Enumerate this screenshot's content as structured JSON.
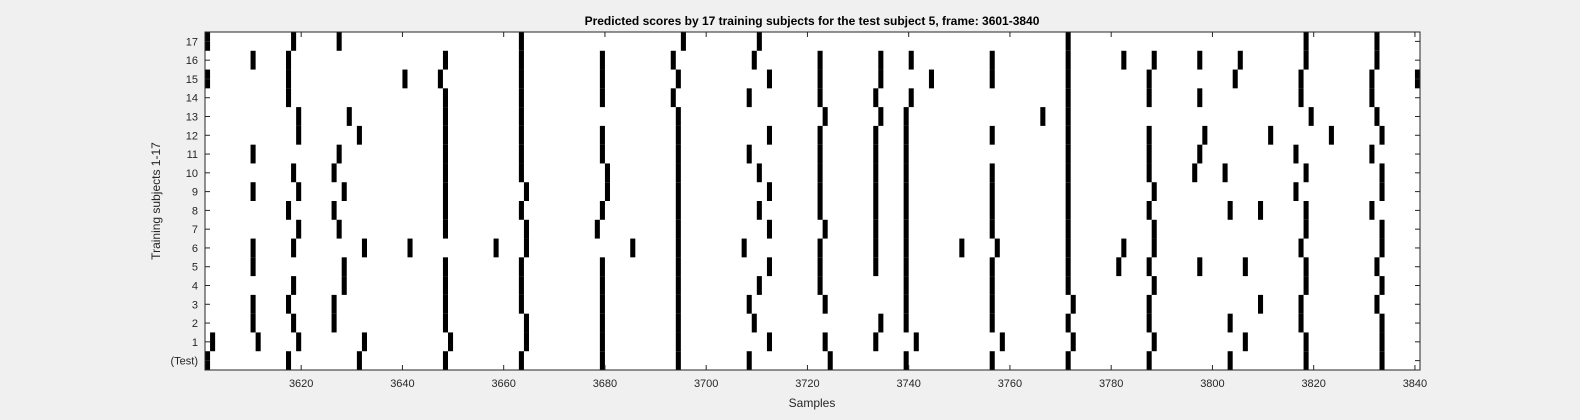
{
  "chart_data": {
    "type": "heatmap",
    "title": "Predicted scores by 17 training subjects for the test subject 5, frame: 3601-3840",
    "xlabel": "Samples",
    "ylabel": "Training subjects 1-17",
    "xlim": [
      3601,
      3840
    ],
    "xticks": [
      3620,
      3640,
      3660,
      3680,
      3700,
      3720,
      3740,
      3760,
      3780,
      3800,
      3820,
      3840
    ],
    "rows": [
      "(Test)",
      "1",
      "2",
      "3",
      "4",
      "5",
      "6",
      "7",
      "8",
      "9",
      "10",
      "11",
      "12",
      "13",
      "14",
      "15",
      "16",
      "17"
    ],
    "mark_color": "#000000",
    "background_color": "#ffffff",
    "events": [
      {
        "row": "(Test)",
        "samples": [
          3601,
          3617,
          3631,
          3648,
          3663,
          3679,
          3694,
          3708,
          3724,
          3739,
          3756,
          3771,
          3787,
          3803,
          3818,
          3833
        ]
      },
      {
        "row": "1",
        "samples": [
          3602,
          3611,
          3619,
          3632,
          3649,
          3664,
          3679,
          3694,
          3712,
          3723,
          3733,
          3741,
          3758,
          3772,
          3788,
          3806,
          3818,
          3833
        ]
      },
      {
        "row": "2",
        "samples": [
          3610,
          3618,
          3626,
          3648,
          3664,
          3679,
          3694,
          3709,
          3734,
          3739,
          3756,
          3771,
          3787,
          3803,
          3817,
          3833
        ]
      },
      {
        "row": "3",
        "samples": [
          3610,
          3617,
          3626,
          3648,
          3663,
          3679,
          3694,
          3708,
          3723,
          3739,
          3756,
          3772,
          3787,
          3809,
          3817,
          3832
        ]
      },
      {
        "row": "4",
        "samples": [
          3618,
          3628,
          3648,
          3663,
          3679,
          3694,
          3710,
          3722,
          3739,
          3756,
          3771,
          3788,
          3818,
          3833
        ]
      },
      {
        "row": "5",
        "samples": [
          3610,
          3628,
          3648,
          3663,
          3679,
          3694,
          3712,
          3722,
          3733,
          3739,
          3756,
          3771,
          3781,
          3787,
          3797,
          3806,
          3818,
          3832
        ]
      },
      {
        "row": "6",
        "samples": [
          3610,
          3618,
          3632,
          3641,
          3658,
          3664,
          3685,
          3694,
          3707,
          3722,
          3733,
          3739,
          3750,
          3757,
          3771,
          3782,
          3788,
          3817,
          3833
        ]
      },
      {
        "row": "7",
        "samples": [
          3619,
          3627,
          3648,
          3664,
          3678,
          3694,
          3712,
          3723,
          3733,
          3739,
          3756,
          3771,
          3788,
          3818,
          3833
        ]
      },
      {
        "row": "8",
        "samples": [
          3617,
          3626,
          3648,
          3663,
          3679,
          3694,
          3710,
          3722,
          3733,
          3739,
          3756,
          3771,
          3787,
          3803,
          3809,
          3818,
          3831
        ]
      },
      {
        "row": "9",
        "samples": [
          3610,
          3619,
          3628,
          3648,
          3664,
          3680,
          3694,
          3712,
          3722,
          3733,
          3739,
          3756,
          3771,
          3788,
          3816,
          3833
        ]
      },
      {
        "row": "10",
        "samples": [
          3618,
          3626,
          3648,
          3663,
          3680,
          3694,
          3710,
          3722,
          3733,
          3739,
          3756,
          3771,
          3787,
          3796,
          3802,
          3818,
          3833
        ]
      },
      {
        "row": "11",
        "samples": [
          3610,
          3627,
          3648,
          3663,
          3679,
          3694,
          3708,
          3722,
          3733,
          3739,
          3771,
          3787,
          3797,
          3816,
          3831
        ]
      },
      {
        "row": "12",
        "samples": [
          3619,
          3631,
          3648,
          3663,
          3679,
          3694,
          3712,
          3722,
          3733,
          3739,
          3756,
          3771,
          3787,
          3798,
          3811,
          3823,
          3833
        ]
      },
      {
        "row": "13",
        "samples": [
          3619,
          3629,
          3648,
          3663,
          3694,
          3723,
          3734,
          3739,
          3766,
          3771,
          3819,
          3832
        ]
      },
      {
        "row": "14",
        "samples": [
          3617,
          3648,
          3663,
          3679,
          3693,
          3708,
          3722,
          3733,
          3740,
          3771,
          3787,
          3797,
          3817,
          3831
        ]
      },
      {
        "row": "15",
        "samples": [
          3601,
          3617,
          3640,
          3647,
          3663,
          3679,
          3694,
          3712,
          3722,
          3734,
          3744,
          3756,
          3771,
          3787,
          3804,
          3817,
          3831,
          3840
        ]
      },
      {
        "row": "16",
        "samples": [
          3610,
          3617,
          3648,
          3663,
          3679,
          3693,
          3709,
          3722,
          3734,
          3740,
          3756,
          3771,
          3782,
          3788,
          3797,
          3805,
          3818,
          3832
        ]
      },
      {
        "row": "17",
        "samples": [
          3601,
          3618,
          3627,
          3663,
          3695,
          3710,
          3771,
          3818,
          3832
        ]
      }
    ]
  }
}
